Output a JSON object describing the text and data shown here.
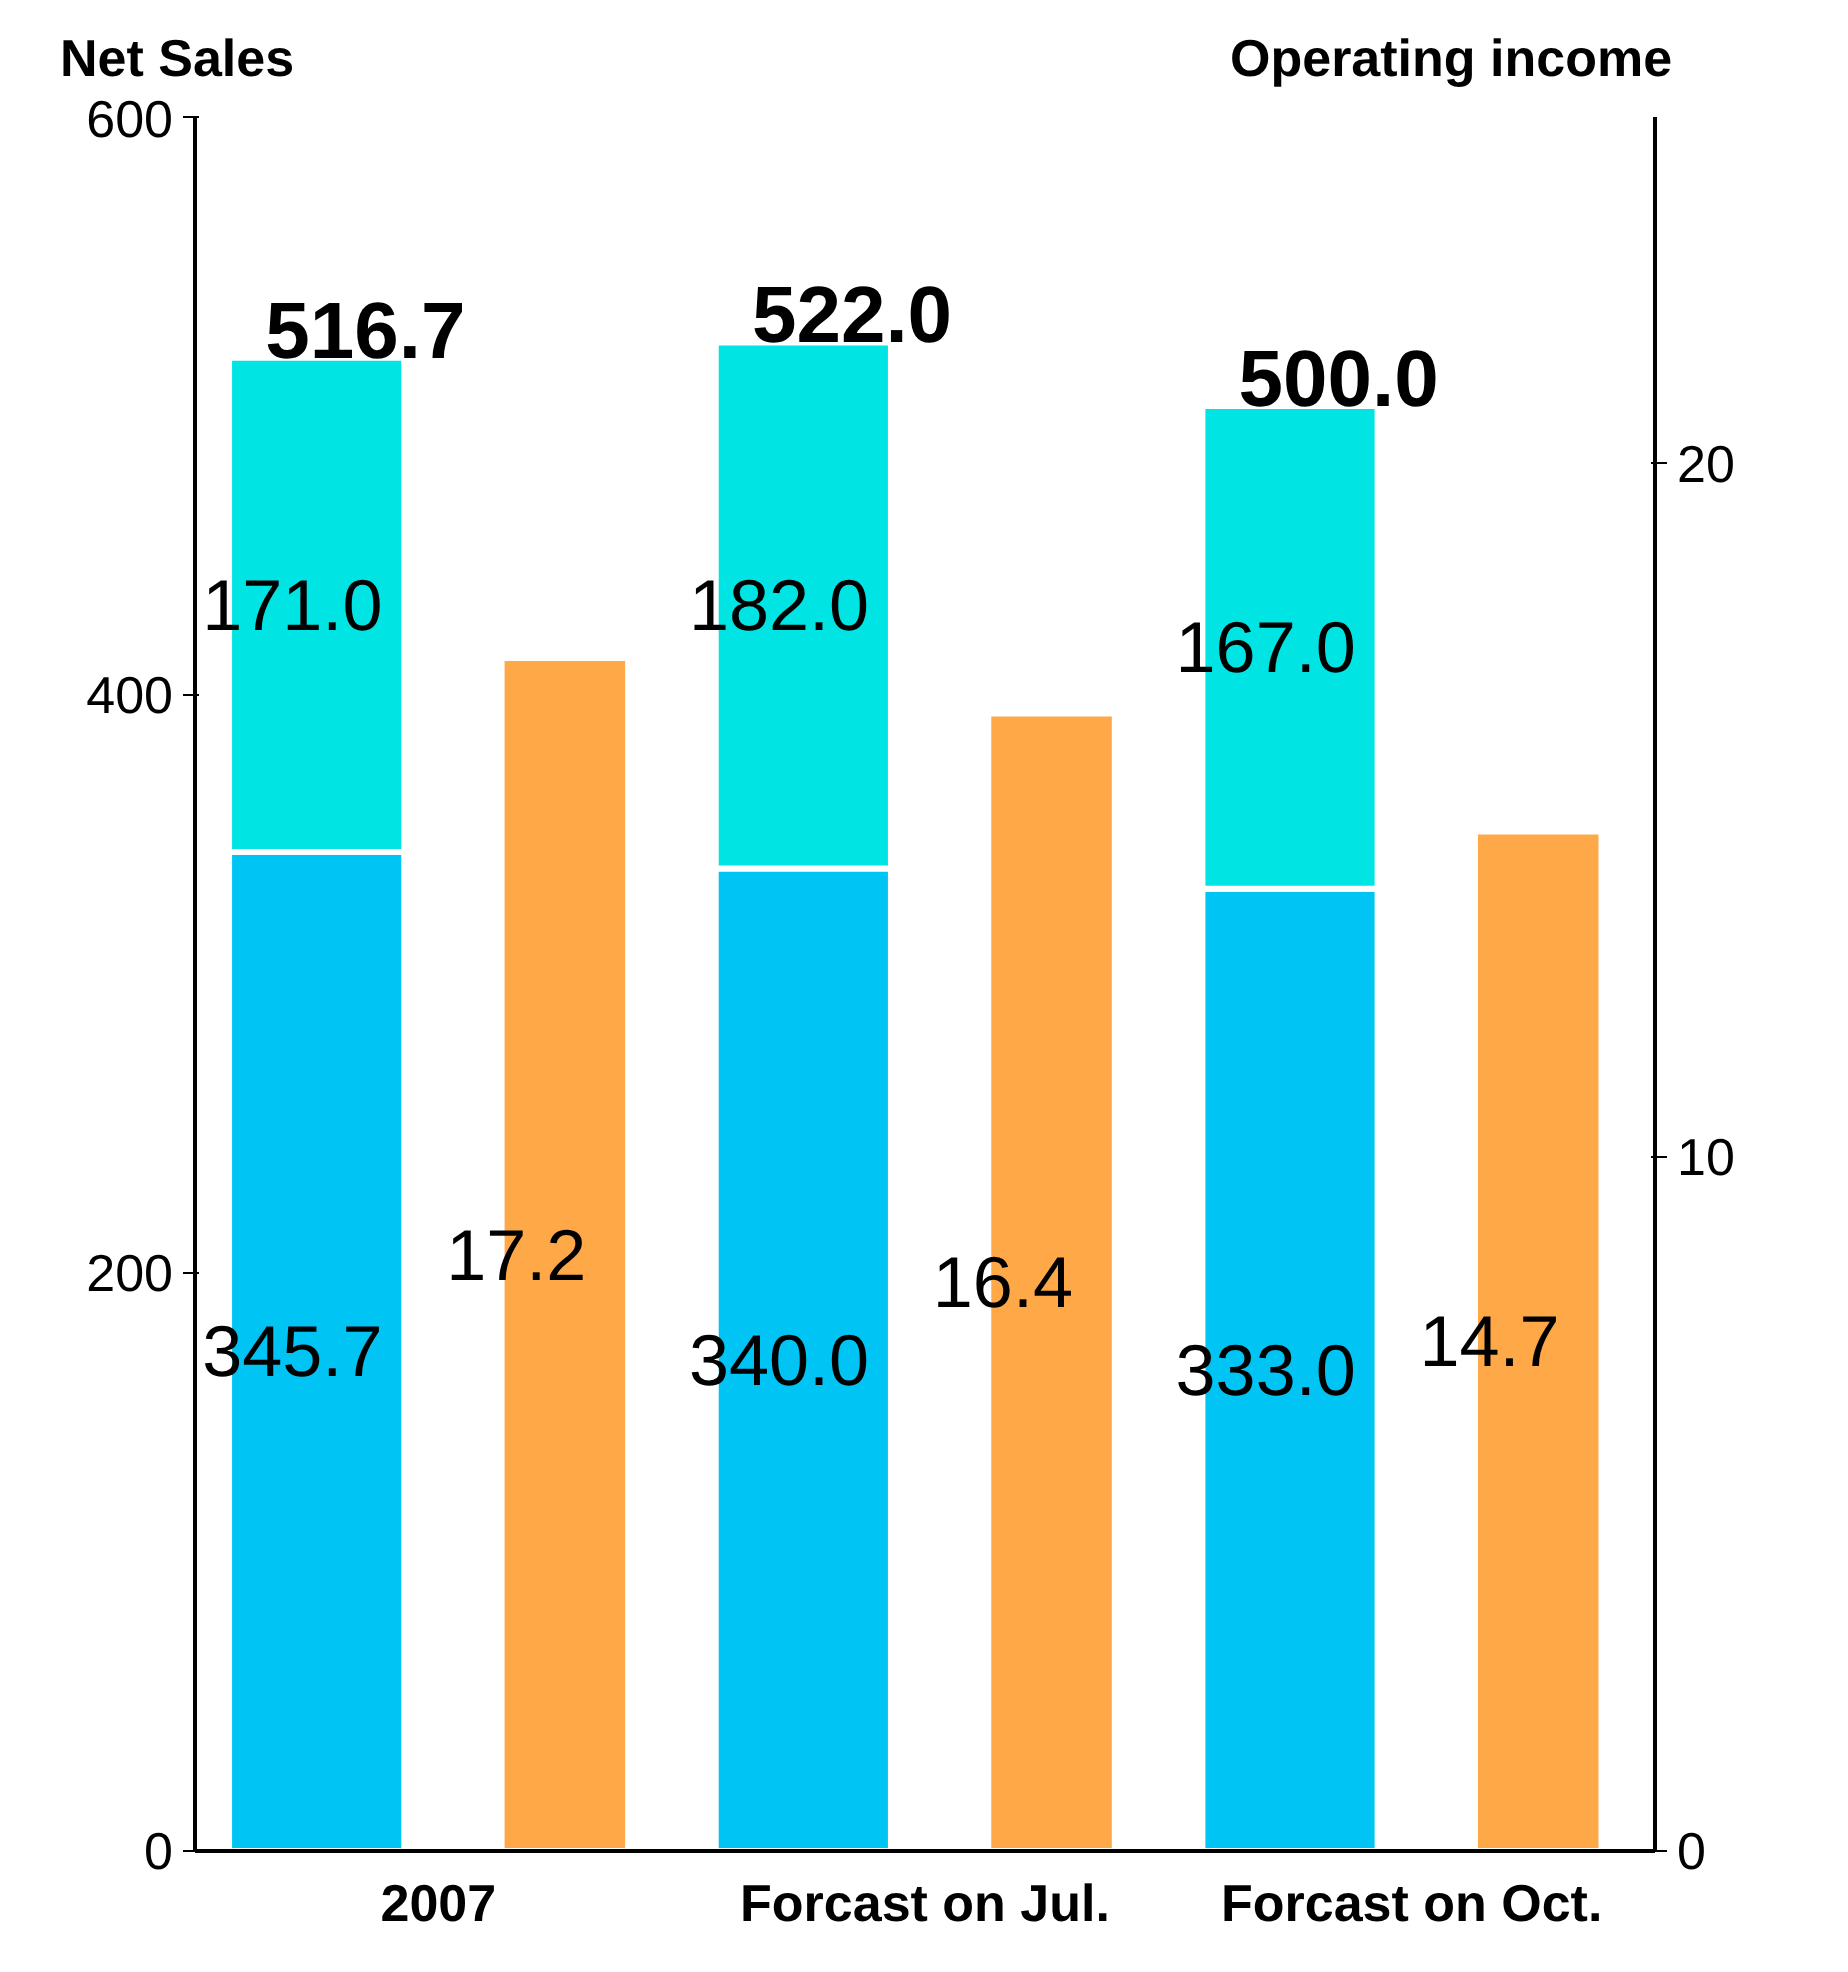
{
  "chart_data": {
    "type": "bar",
    "stacked": true,
    "categories": [
      "2007",
      "Forcast on Jul.",
      "Forcast on Oct."
    ],
    "ylabel": "Net Sales",
    "y2label": "Operating income",
    "ylim": [
      0,
      600
    ],
    "yticks": [
      0,
      200,
      400,
      600
    ],
    "y2lim": [
      0,
      25
    ],
    "y2ticks": [
      0,
      10,
      20
    ],
    "series": [
      {
        "color": "#00c4f4",
        "values": [
          345.7,
          340.0,
          333.0
        ],
        "value_labels": [
          "345.7",
          "340.0",
          "333.0"
        ]
      },
      {
        "color": "#00e4e4",
        "values": [
          171.0,
          182.0,
          167.0
        ],
        "value_labels": [
          "171.0",
          "182.0",
          "167.0"
        ]
      },
      {
        "color": "#ffa848",
        "values": [
          17.2,
          16.4,
          14.7
        ],
        "axis": "y2",
        "value_labels": [
          "17.2",
          "16.4",
          "14.7"
        ]
      }
    ],
    "totals": [
      "516.7",
      "522.0",
      "500.0"
    ],
    "grid": false
  }
}
